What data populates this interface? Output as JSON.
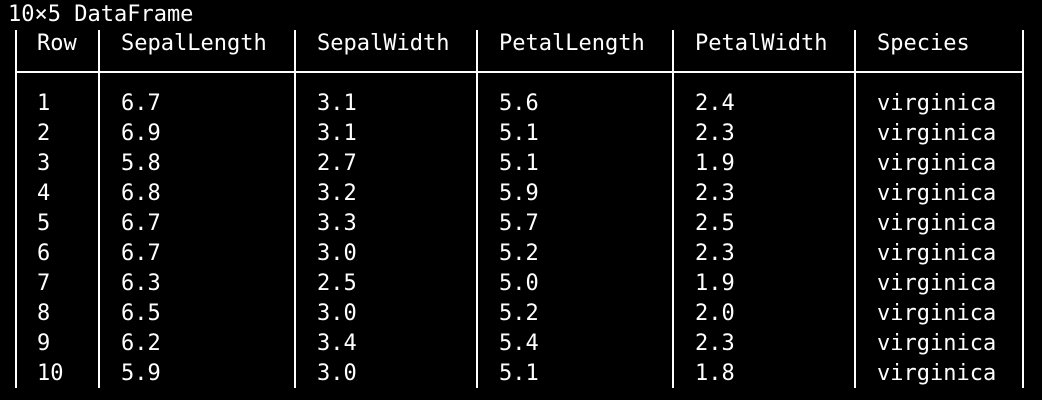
{
  "caption": "10×5 DataFrame",
  "table": {
    "columns": [
      "Row",
      "SepalLength",
      "SepalWidth",
      "PetalLength",
      "PetalWidth",
      "Species"
    ],
    "rows": [
      [
        "1",
        "6.7",
        "3.1",
        "5.6",
        "2.4",
        "virginica"
      ],
      [
        "2",
        "6.9",
        "3.1",
        "5.1",
        "2.3",
        "virginica"
      ],
      [
        "3",
        "5.8",
        "2.7",
        "5.1",
        "1.9",
        "virginica"
      ],
      [
        "4",
        "6.8",
        "3.2",
        "5.9",
        "2.3",
        "virginica"
      ],
      [
        "5",
        "6.7",
        "3.3",
        "5.7",
        "2.5",
        "virginica"
      ],
      [
        "6",
        "6.7",
        "3.0",
        "5.2",
        "2.3",
        "virginica"
      ],
      [
        "7",
        "6.3",
        "2.5",
        "5.0",
        "1.9",
        "virginica"
      ],
      [
        "8",
        "6.5",
        "3.0",
        "5.2",
        "2.0",
        "virginica"
      ],
      [
        "9",
        "6.2",
        "3.4",
        "5.4",
        "2.3",
        "virginica"
      ],
      [
        "10",
        "5.9",
        "3.0",
        "5.1",
        "1.8",
        "virginica"
      ]
    ]
  }
}
